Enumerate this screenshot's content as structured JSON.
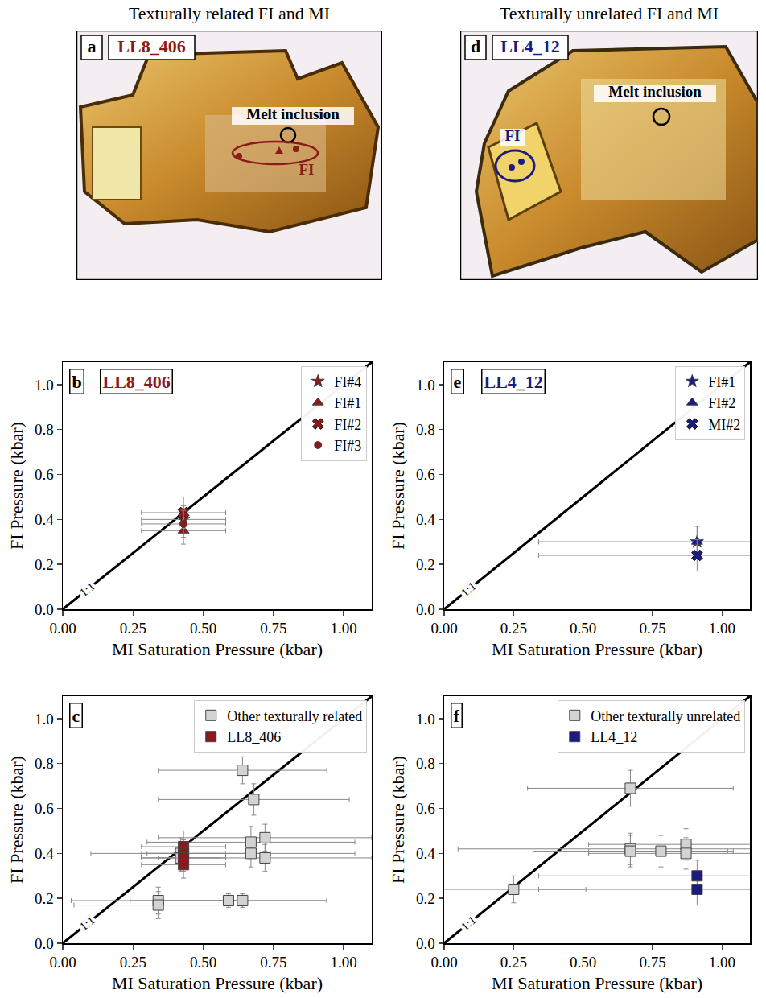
{
  "column_titles": [
    "Texturally related FI and MI",
    "Texturally unrelated FI and MI"
  ],
  "photos": [
    {
      "letter": "a",
      "sample": "LL8_406",
      "sample_color": "#8b1a1a",
      "mi_label": "Melt inclusion",
      "fi_label": "FI"
    },
    {
      "letter": "d",
      "sample": "LL4_12",
      "sample_color": "#1c1c80",
      "mi_label": "Melt inclusion",
      "fi_label": "FI"
    }
  ],
  "chart_data": [
    {
      "type": "scatter",
      "panel": "b",
      "sample": "LL8_406",
      "sample_color": "#8b1a1a",
      "x_label": "MI Saturation Pressure (kbar)",
      "y_label": "FI Pressure (kbar)",
      "xlim": [
        0,
        1.1
      ],
      "ylim": [
        0,
        1.1
      ],
      "xticks": [
        {
          "value": 0,
          "label": "0.00"
        },
        {
          "value": 0.25,
          "label": "0.25"
        },
        {
          "value": 0.5,
          "label": "0.50"
        },
        {
          "value": 0.75,
          "label": "0.75"
        },
        {
          "value": 1,
          "label": "1.00"
        }
      ],
      "yticks": [
        {
          "value": 0,
          "label": "0.0"
        },
        {
          "value": 0.2,
          "label": "0.2"
        },
        {
          "value": 0.4,
          "label": "0.4"
        },
        {
          "value": 0.6,
          "label": "0.6"
        },
        {
          "value": 0.8,
          "label": "0.8"
        },
        {
          "value": 1,
          "label": "1.0"
        }
      ],
      "grid": false,
      "legend": "upper right",
      "reference_line": {
        "x": [
          0,
          1.1
        ],
        "y": [
          0,
          1.1
        ],
        "label": "1:1"
      },
      "series": [
        {
          "name": "FI#4",
          "color": "#8b1a1a",
          "marker": "star",
          "x": [
            0.43
          ],
          "y": [
            0.4
          ],
          "xerr": [
            0.15
          ],
          "yerr": [
            0.06
          ]
        },
        {
          "name": "FI#1",
          "color": "#8b1a1a",
          "marker": "triangle",
          "x": [
            0.43
          ],
          "y": [
            0.35
          ],
          "xerr": [
            0.15
          ],
          "yerr": [
            0.06
          ]
        },
        {
          "name": "FI#2",
          "color": "#8b1a1a",
          "marker": "x",
          "x": [
            0.43
          ],
          "y": [
            0.43
          ],
          "xerr": [
            0.15
          ],
          "yerr": [
            0.07
          ]
        },
        {
          "name": "FI#3",
          "color": "#8b1a1a",
          "marker": "circle",
          "x": [
            0.43
          ],
          "y": [
            0.38
          ],
          "xerr": [
            0.15
          ],
          "yerr": [
            0.06
          ]
        }
      ]
    },
    {
      "type": "scatter",
      "panel": "c",
      "sample": null,
      "sample_color": null,
      "x_label": "MI Saturation Pressure (kbar)",
      "y_label": "FI Pressure (kbar)",
      "xlim": [
        0,
        1.1
      ],
      "ylim": [
        0,
        1.1
      ],
      "xticks": [
        {
          "value": 0,
          "label": "0.00"
        },
        {
          "value": 0.25,
          "label": "0.25"
        },
        {
          "value": 0.5,
          "label": "0.50"
        },
        {
          "value": 0.75,
          "label": "0.75"
        },
        {
          "value": 1,
          "label": "1.00"
        }
      ],
      "yticks": [
        {
          "value": 0,
          "label": "0.0"
        },
        {
          "value": 0.2,
          "label": "0.2"
        },
        {
          "value": 0.4,
          "label": "0.4"
        },
        {
          "value": 0.6,
          "label": "0.6"
        },
        {
          "value": 0.8,
          "label": "0.8"
        },
        {
          "value": 1,
          "label": "1.0"
        }
      ],
      "grid": false,
      "legend": "upper right",
      "reference_line": {
        "x": [
          0,
          1.1
        ],
        "y": [
          0,
          1.1
        ],
        "label": "1:1"
      },
      "series": [
        {
          "name": "Other texturally related",
          "color": "#d3d3d3",
          "marker": "square",
          "x": [
            0.64,
            0.68,
            0.67,
            0.72,
            0.67,
            0.72,
            0.42,
            0.42,
            0.34,
            0.34,
            0.59,
            0.64
          ],
          "y": [
            0.77,
            0.64,
            0.45,
            0.47,
            0.4,
            0.38,
            0.4,
            0.38,
            0.19,
            0.17,
            0.19,
            0.19
          ],
          "xerr": [
            0.3,
            0.34,
            0.37,
            0.38,
            0.37,
            0.38,
            0.32,
            0.14,
            0.31,
            0.3,
            0.35,
            0.3
          ],
          "yerr": [
            0.06,
            0.07,
            0.07,
            0.06,
            0.06,
            0.06,
            0.07,
            0.06,
            0.06,
            0.06,
            0.03,
            0.03
          ]
        },
        {
          "name": "LL8_406",
          "color": "#8b1a1a",
          "marker": "square",
          "x": [
            0.43,
            0.43,
            0.43,
            0.43
          ],
          "y": [
            0.43,
            0.4,
            0.38,
            0.35
          ],
          "xerr": [
            0.15,
            0.15,
            0.15,
            0.15
          ],
          "yerr": [
            0.07,
            0.06,
            0.06,
            0.06
          ]
        }
      ]
    },
    {
      "type": "scatter",
      "panel": "e",
      "sample": "LL4_12",
      "sample_color": "#1c1c80",
      "x_label": "MI Saturation Pressure (kbar)",
      "y_label": "FI Pressure (kbar)",
      "xlim": [
        0,
        1.1
      ],
      "ylim": [
        0,
        1.1
      ],
      "xticks": [
        {
          "value": 0,
          "label": "0.00"
        },
        {
          "value": 0.25,
          "label": "0.25"
        },
        {
          "value": 0.5,
          "label": "0.50"
        },
        {
          "value": 0.75,
          "label": "0.75"
        },
        {
          "value": 1,
          "label": "1.00"
        }
      ],
      "yticks": [
        {
          "value": 0,
          "label": "0.0"
        },
        {
          "value": 0.2,
          "label": "0.2"
        },
        {
          "value": 0.4,
          "label": "0.4"
        },
        {
          "value": 0.6,
          "label": "0.6"
        },
        {
          "value": 0.8,
          "label": "0.8"
        },
        {
          "value": 1,
          "label": "1.0"
        }
      ],
      "grid": false,
      "legend": "upper right",
      "reference_line": {
        "x": [
          0,
          1.1
        ],
        "y": [
          0,
          1.1
        ],
        "label": "1:1"
      },
      "series": [
        {
          "name": "FI#1",
          "color": "#1c1c80",
          "marker": "star",
          "x": [
            0.91
          ],
          "y": [
            0.3
          ],
          "xerr": [
            0.57
          ],
          "yerr": [
            0.07
          ]
        },
        {
          "name": "FI#2",
          "color": "#1c1c80",
          "marker": "triangle",
          "x": [
            0.91
          ],
          "y": [
            0.3
          ],
          "xerr": [
            0.57
          ],
          "yerr": [
            0.07
          ]
        },
        {
          "name": "MI#2",
          "color": "#1c1c80",
          "marker": "x",
          "x": [
            0.91
          ],
          "y": [
            0.24
          ],
          "xerr": [
            0.57
          ],
          "yerr": [
            0.07
          ]
        }
      ]
    },
    {
      "type": "scatter",
      "panel": "f",
      "sample": null,
      "sample_color": null,
      "x_label": "MI Saturation Pressure (kbar)",
      "y_label": "FI Pressure (kbar)",
      "xlim": [
        0,
        1.1
      ],
      "ylim": [
        0,
        1.1
      ],
      "xticks": [
        {
          "value": 0,
          "label": "0.00"
        },
        {
          "value": 0.25,
          "label": "0.25"
        },
        {
          "value": 0.5,
          "label": "0.50"
        },
        {
          "value": 0.75,
          "label": "0.75"
        },
        {
          "value": 1,
          "label": "1.00"
        }
      ],
      "yticks": [
        {
          "value": 0,
          "label": "0.0"
        },
        {
          "value": 0.2,
          "label": "0.2"
        },
        {
          "value": 0.4,
          "label": "0.4"
        },
        {
          "value": 0.6,
          "label": "0.6"
        },
        {
          "value": 0.8,
          "label": "0.8"
        },
        {
          "value": 1,
          "label": "1.0"
        }
      ],
      "grid": false,
      "legend": "upper right",
      "reference_line": {
        "x": [
          0,
          1.1
        ],
        "y": [
          0,
          1.1
        ],
        "label": "1:1"
      },
      "series": [
        {
          "name": "Other texturally unrelated",
          "color": "#d3d3d3",
          "marker": "square",
          "x": [
            0.67,
            0.25,
            0.67,
            0.67,
            0.78,
            0.87,
            0.87
          ],
          "y": [
            0.69,
            0.24,
            0.42,
            0.41,
            0.41,
            0.44,
            0.4
          ],
          "xerr": [
            0.37,
            0.26,
            0.62,
            0.35,
            0.26,
            0.35,
            0.35
          ],
          "yerr": [
            0.08,
            0.06,
            0.07,
            0.07,
            0.07,
            0.07,
            0.07
          ]
        },
        {
          "name": "LL4_12",
          "color": "#1c1c80",
          "marker": "square",
          "x": [
            0.91,
            0.91
          ],
          "y": [
            0.3,
            0.24
          ],
          "xerr": [
            0.57,
            0.57
          ],
          "yerr": [
            0.07,
            0.07
          ]
        }
      ]
    }
  ]
}
